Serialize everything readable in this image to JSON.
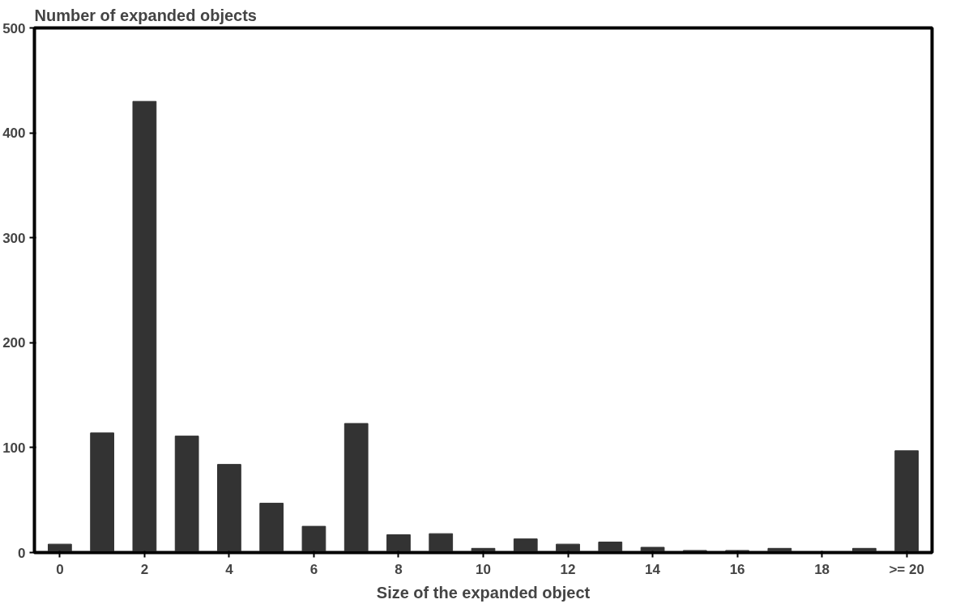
{
  "chart_data": {
    "type": "bar",
    "ylabel": "Number of expanded objects",
    "xlabel": "Size of the expanded object",
    "categories": [
      "0",
      null,
      "2",
      null,
      "4",
      null,
      "6",
      null,
      "8",
      null,
      "10",
      null,
      "12",
      null,
      "14",
      null,
      "16",
      null,
      "18",
      null,
      ">= 20"
    ],
    "values": [
      8,
      114,
      430,
      111,
      84,
      47,
      25,
      123,
      17,
      18,
      4,
      13,
      8,
      10,
      5,
      2,
      2,
      4,
      0,
      4,
      97
    ],
    "color": "#333333",
    "ylim": [
      0,
      500
    ],
    "yticks": [
      0,
      100,
      200,
      300,
      400,
      500
    ],
    "grid": false
  }
}
